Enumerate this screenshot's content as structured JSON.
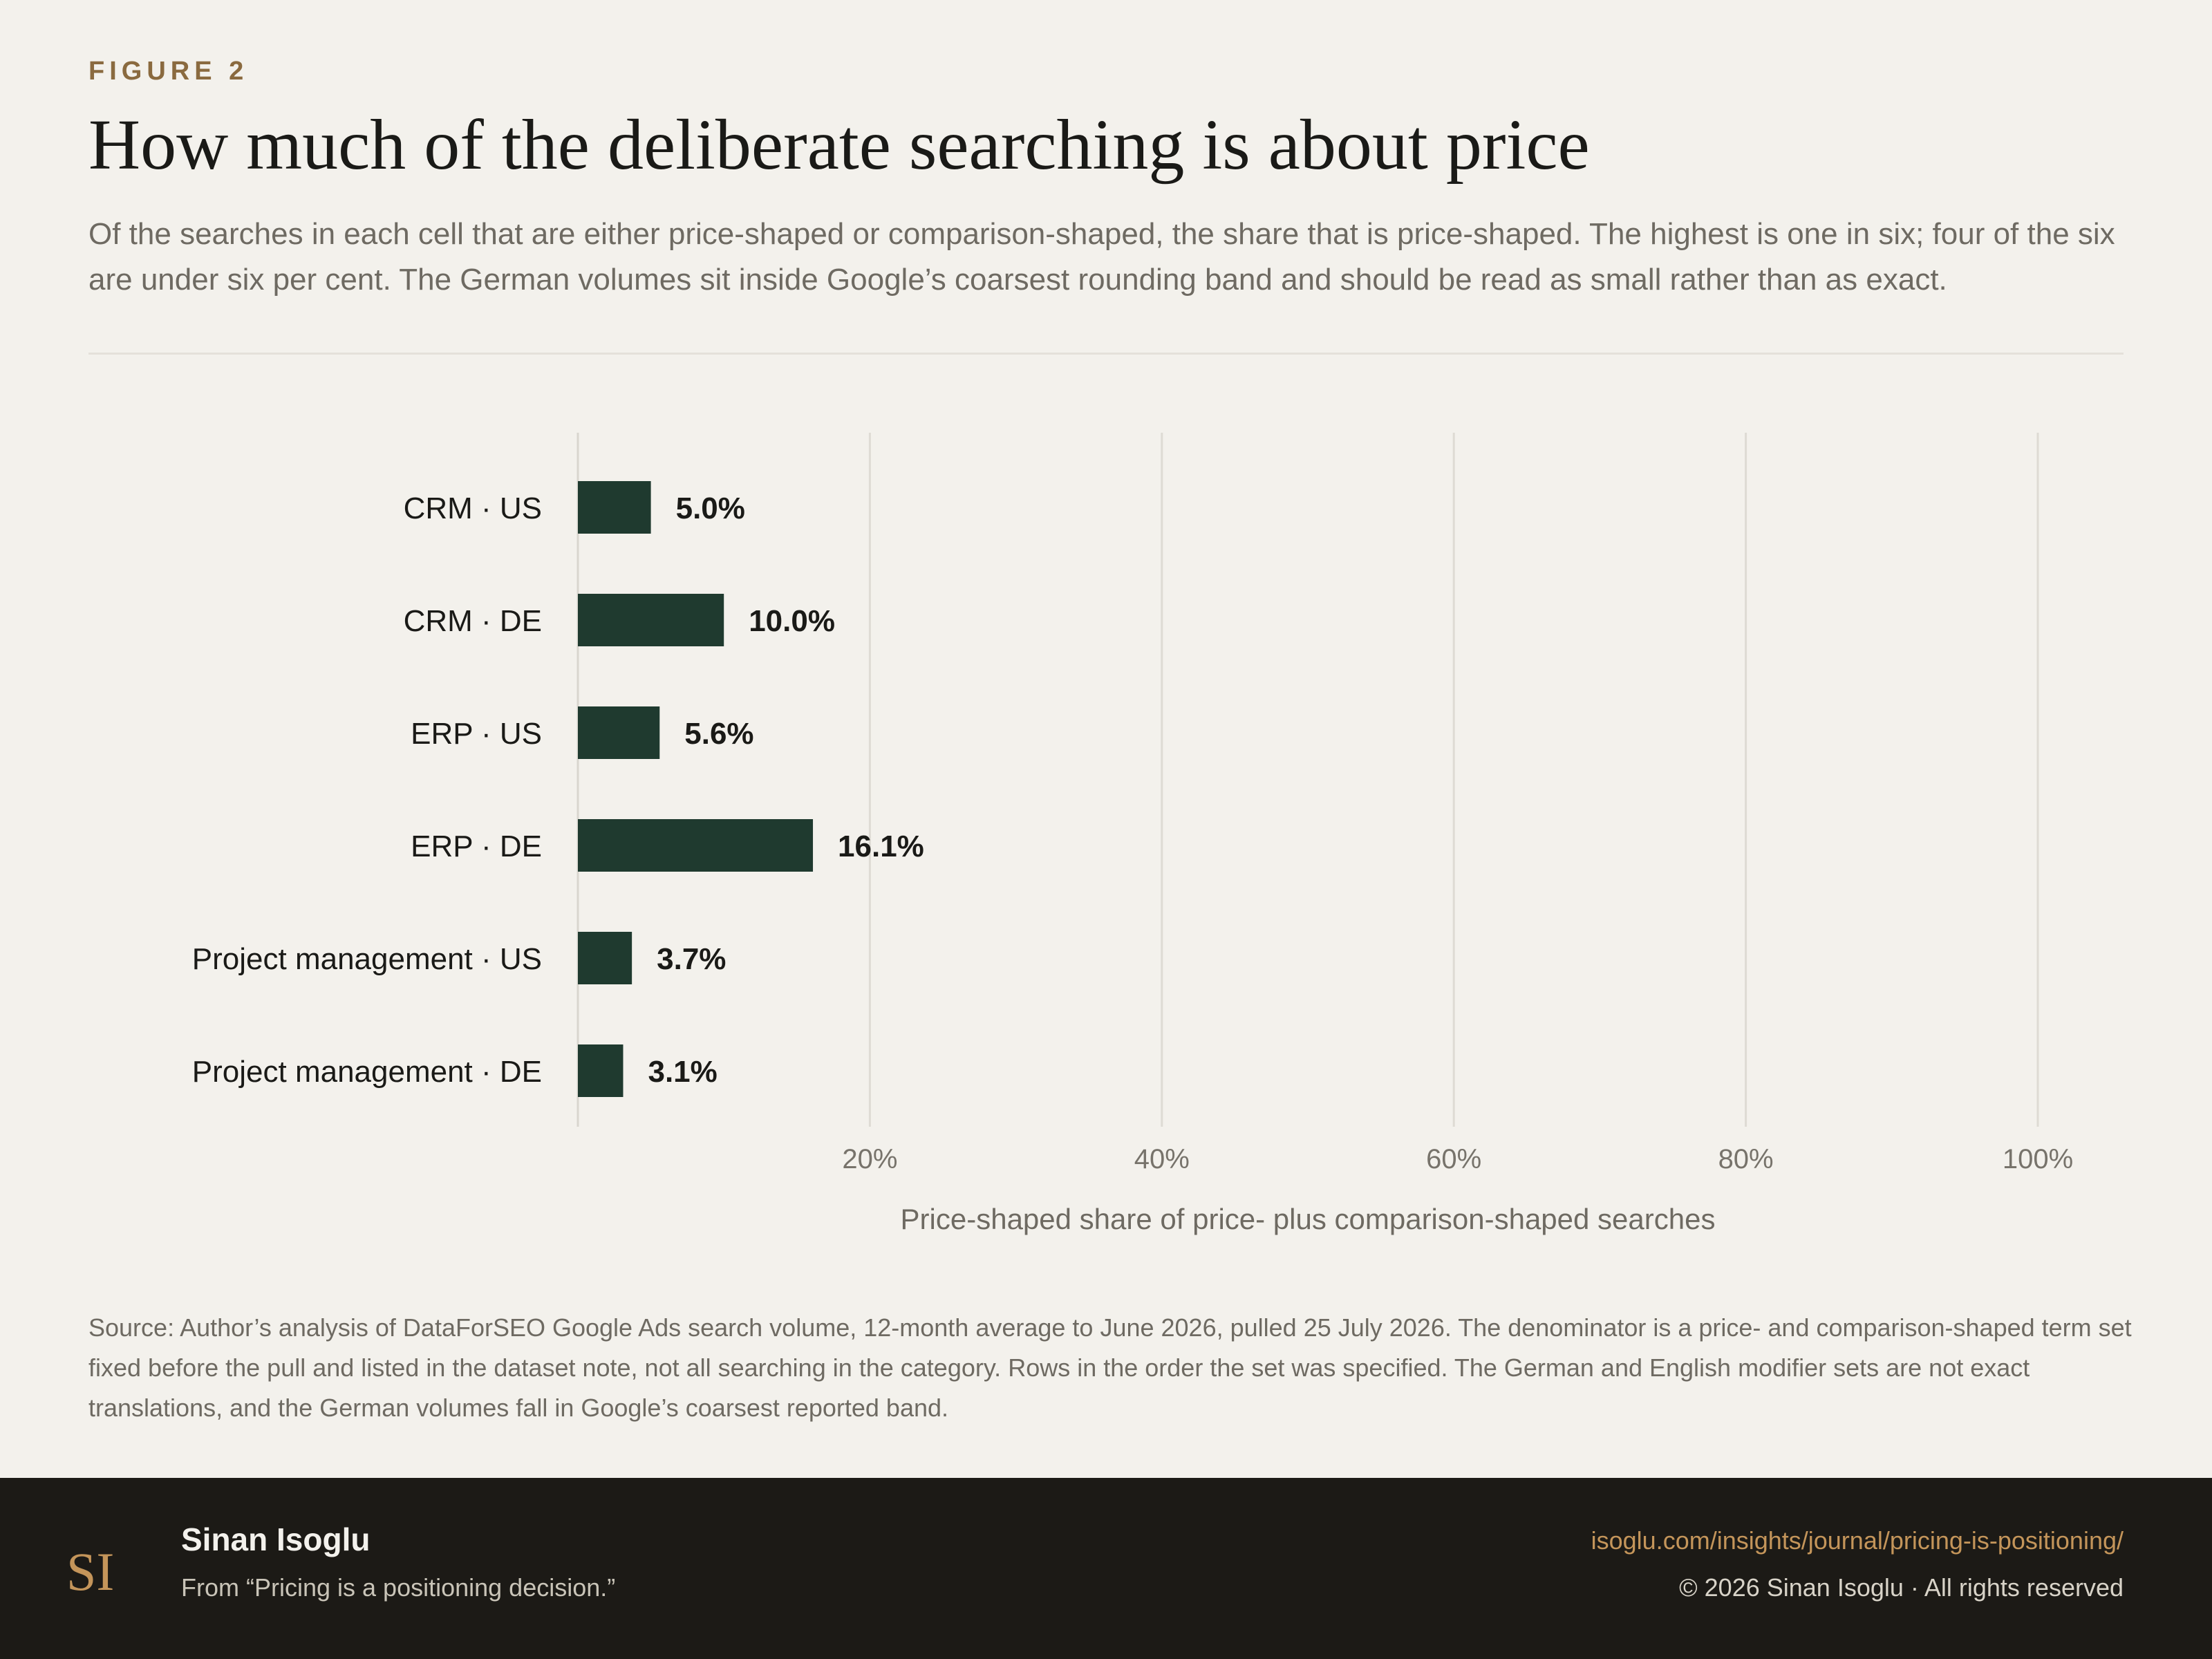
{
  "header": {
    "eyebrow": "FIGURE 2",
    "title": "How much of the deliberate searching is about price",
    "subtitle": "Of the searches in each cell that are either price-shaped or comparison-shaped, the share that is price-shaped. The highest is one in six; four of the six are under six per cent. The German volumes sit inside Google’s coarsest rounding band and should be read as small rather than as exact."
  },
  "chart_data": {
    "type": "bar",
    "orientation": "horizontal",
    "categories": [
      "CRM · US",
      "CRM · DE",
      "ERP · US",
      "ERP · DE",
      "Project management · US",
      "Project management · DE"
    ],
    "values": [
      5.0,
      10.0,
      5.6,
      16.1,
      3.7,
      3.1
    ],
    "value_labels": [
      "5.0%",
      "10.0%",
      "5.6%",
      "16.1%",
      "3.7%",
      "3.1%"
    ],
    "xlabel": "Price-shaped share of price- plus comparison-shaped searches",
    "xlim": [
      0,
      100
    ],
    "x_ticks": [
      20,
      40,
      60,
      80,
      100
    ],
    "x_tick_labels": [
      "20%",
      "40%",
      "60%",
      "80%",
      "100%"
    ],
    "grid": "vertical",
    "bar_color": "#1f3a2f"
  },
  "source": "Source: Author’s analysis of DataForSEO Google Ads search volume, 12-month average to June 2026, pulled 25 July 2026. The denominator is a price- and comparison-shaped term set fixed before the pull and listed in the dataset note, not all searching in the category. Rows in the order the set was specified. The German and English modifier sets are not exact translations, and the German volumes fall in Google’s coarsest reported band.",
  "footer": {
    "logo_text": "SI",
    "author": "Sinan Isoglu",
    "from": "From “Pricing is a positioning decision.”",
    "url": "isoglu.com/insights/journal/pricing-is-positioning/",
    "copyright": "© 2026 Sinan Isoglu · All rights reserved"
  }
}
